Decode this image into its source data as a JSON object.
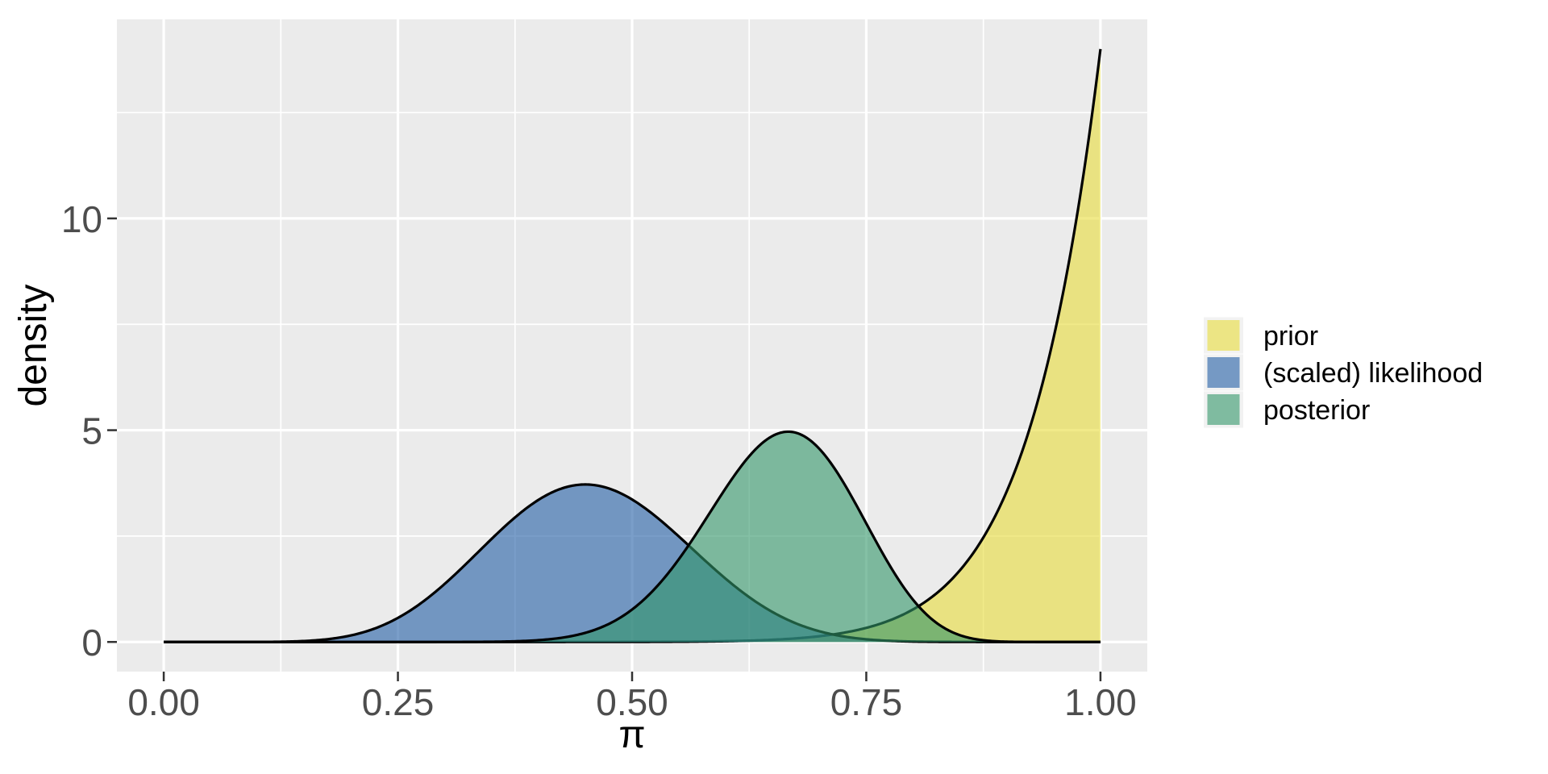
{
  "chart_data": {
    "type": "area",
    "title": "",
    "xlabel": "π",
    "ylabel": "density",
    "xlim": [
      -0.05,
      1.05
    ],
    "ylim": [
      -0.7,
      14.7
    ],
    "x_ticks": [
      {
        "value": 0.0,
        "label": "0.00"
      },
      {
        "value": 0.25,
        "label": "0.25"
      },
      {
        "value": 0.5,
        "label": "0.50"
      },
      {
        "value": 0.75,
        "label": "0.75"
      },
      {
        "value": 1.0,
        "label": "1.00"
      }
    ],
    "y_ticks": [
      {
        "value": 0,
        "label": "0"
      },
      {
        "value": 5,
        "label": "5"
      },
      {
        "value": 10,
        "label": "10"
      }
    ],
    "x_minor_gridlines": [
      0.125,
      0.375,
      0.625,
      0.875
    ],
    "y_minor_gridlines": [
      2.5,
      7.5,
      12.5
    ],
    "grid": {
      "major": true,
      "minor": true
    },
    "legend_position": "right",
    "panel_bg": "#EBEBEB",
    "grid_color": "#FFFFFF",
    "tick_color": "#333333",
    "tick_label_color": "#4D4D4D",
    "axis_title_color": "#000000",
    "legend_key_bg": "#F2F2F2",
    "series": [
      {
        "name": "prior",
        "distribution": "Beta(14, 1)",
        "shape1": 14,
        "shape2": 1,
        "fill": "#E8DC3A",
        "fill_opacity": 0.6,
        "line_color": "#000000",
        "peak": {
          "x": 1.0,
          "y": 14.0
        },
        "sample_points": {
          "x": [
            0,
            0.25,
            0.5,
            0.625,
            0.75,
            0.875,
            0.9375,
            1.0
          ],
          "y": [
            0,
            0.0,
            0.002,
            0.031,
            0.33,
            2.63,
            6.14,
            14.0
          ]
        }
      },
      {
        "name": "(scaled) likelihood",
        "distribution": "Beta(10, 12)",
        "shape1": 10,
        "shape2": 12,
        "fill": "#215DA5",
        "fill_opacity": 0.6,
        "line_color": "#000000",
        "peak": {
          "x": 0.45,
          "y": 3.73
        },
        "sample_points": {
          "x": [
            0,
            0.25,
            0.35,
            0.45,
            0.5,
            0.6,
            0.667,
            0.75,
            1.0
          ],
          "y": [
            0,
            0.57,
            2.44,
            3.73,
            3.37,
            1.49,
            0.51,
            0.06,
            0
          ]
        }
      },
      {
        "name": "posterior",
        "distribution": "Beta(23, 12)",
        "shape1": 23,
        "shape2": 12,
        "fill": "#329669",
        "fill_opacity": 0.6,
        "line_color": "#000000",
        "peak": {
          "x": 0.667,
          "y": 4.96
        },
        "sample_points": {
          "x": [
            0,
            0.45,
            0.5,
            0.6,
            0.667,
            0.75,
            0.875,
            1.0
          ],
          "y": [
            0,
            0.22,
            0.77,
            3.63,
            4.96,
            2.8,
            0.04,
            0
          ]
        }
      }
    ]
  }
}
